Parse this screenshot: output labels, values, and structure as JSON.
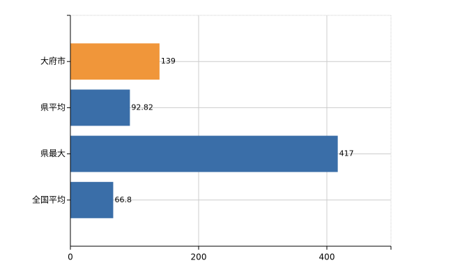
{
  "chart_data": {
    "type": "bar",
    "orientation": "horizontal",
    "categories": [
      "大府市",
      "県平均",
      "県最大",
      "全国平均"
    ],
    "values": [
      139,
      92.82,
      417,
      66.8
    ],
    "colors": [
      "#f0963a",
      "#3a6ea8",
      "#3a6ea8",
      "#3a6ea8"
    ],
    "xlim": [
      0,
      500
    ],
    "xticks": [
      0,
      200,
      400
    ],
    "grid": true
  }
}
